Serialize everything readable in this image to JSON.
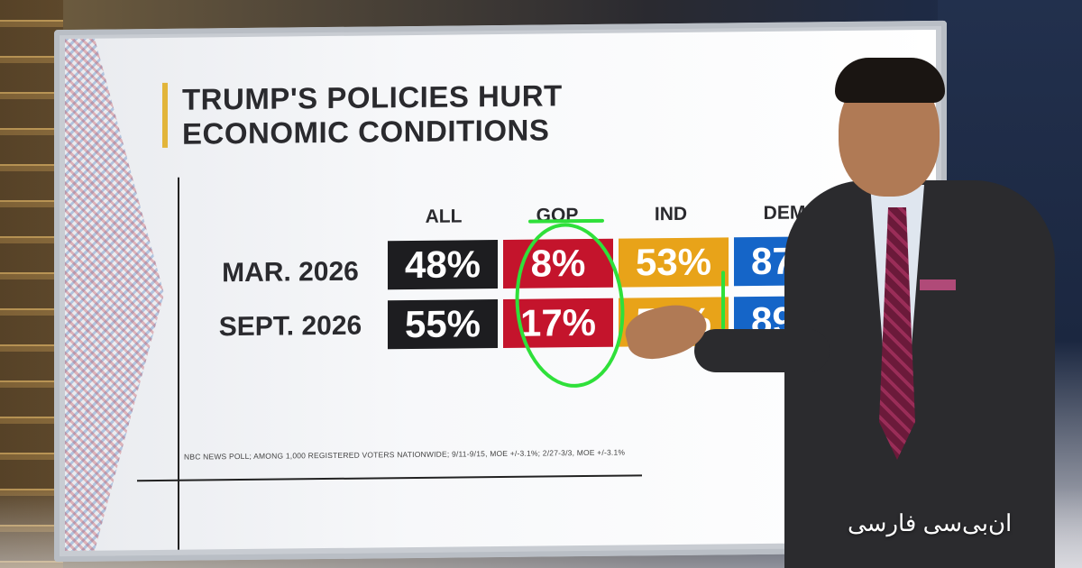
{
  "graphic": {
    "title": "TRUMP'S POLICIES HURT\nECONOMIC CONDITIONS",
    "columns": [
      "ALL",
      "GOP",
      "IND",
      "DEM"
    ],
    "rows": [
      {
        "label": "MAR. 2026",
        "values": [
          "48%",
          "8%",
          "53%",
          "87%"
        ]
      },
      {
        "label": "SEPT. 2026",
        "values": [
          "55%",
          "17%",
          "5_%",
          "89%"
        ]
      }
    ],
    "footnote": "NBC NEWS POLL; AMONG 1,000 REGISTERED VOTERS NATIONWIDE; 9/11-9/15, MOE +/-3.1%; 2/27-3/3, MOE +/-3.1%",
    "colors": {
      "all": "#1d1d20",
      "gop": "#c4142c",
      "ind": "#e8a319",
      "dem": "#1565c8",
      "annotation": "#2fe03a",
      "title_accent": "#e2b53a"
    }
  },
  "watermark": "ان‌بی‌سی فارسی"
}
